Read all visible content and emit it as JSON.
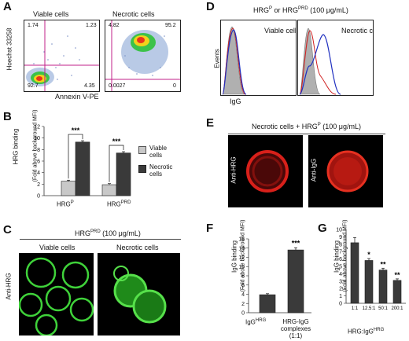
{
  "panels": {
    "A": {
      "letter": "A",
      "left_title": "Viable cells",
      "right_title": "Necrotic cells",
      "ylabel": "Hoechst 33258",
      "xlabel": "Annexin V-PE",
      "viable_quadrants": {
        "ul": "1.74",
        "ur": "1.23",
        "ll": "92.7",
        "lr": "4.35"
      },
      "necrotic_quadrants": {
        "ul": "4.82",
        "ur": "95.2",
        "ll": "0.0027",
        "lr": "0"
      }
    },
    "B": {
      "letter": "B",
      "ylabel": "HRG binding",
      "ylabel2": "(Fold above background MFI)",
      "legend_viable": "Viable cells",
      "legend_necrotic": "Necrotic cells",
      "sig": "***",
      "cat1": "HRG",
      "cat1_sup": "P",
      "cat2": "HRG",
      "cat2_sup": "PRD",
      "colors": {
        "viable": "#c8c8c8",
        "necrotic": "#3a3a3a"
      }
    },
    "C": {
      "letter": "C",
      "title": "HRG",
      "title_sup": "PRD",
      "title_rest": " (100 μg/mL)",
      "left_title": "Viable cells",
      "right_title": "Necrotic cells",
      "ylabel": "Anti-HRG"
    },
    "D": {
      "letter": "D",
      "title_a": "HRG",
      "title_sup_a": "P",
      "title_mid": " or HRG",
      "title_sup_b": "PRD",
      "title_rest": " (100 μg/mL)",
      "left_label": "Viable cells",
      "right_label": "Necrotic cells",
      "ylabel": "Events",
      "xlabel": "IgG"
    },
    "E": {
      "letter": "E",
      "title": "Necrotic cells + HRG",
      "title_sup": "P",
      "title_rest": " (100 μg/mL)",
      "label_left": "Anti-HRG",
      "label_right": "Anti-IgG"
    },
    "F": {
      "letter": "F",
      "ylabel": "IgG binding",
      "ylabel2": "(Fold above background MFI)",
      "cat1": "IgG",
      "cat1_sup": "HRG",
      "cat2_line1": "HRG-IgG",
      "cat2_line2": "complexes",
      "cat2_line3": "(1:1)",
      "sig": "***"
    },
    "G": {
      "letter": "G",
      "ylabel": "IgG binding",
      "ylabel2": "(Fold above background MFI)",
      "xlabel": "HRG:IgG",
      "xlabel_sup": "HRG",
      "sig1": "*",
      "sig2": "**",
      "sig3": "**"
    }
  },
  "chart_data": [
    {
      "type": "bar",
      "panel": "B",
      "categories": [
        "HRGP",
        "HRGPRD"
      ],
      "series": [
        {
          "name": "Viable cells",
          "values": [
            2.5,
            1.9
          ],
          "errors": [
            0.05,
            0.05
          ]
        },
        {
          "name": "Necrotic cells",
          "values": [
            9.3,
            7.4
          ],
          "errors": [
            0.1,
            0.1
          ]
        }
      ],
      "ylim": [
        0,
        12
      ],
      "yticks": [
        0,
        2,
        4,
        6,
        8,
        10,
        12
      ]
    },
    {
      "type": "bar",
      "panel": "F",
      "categories": [
        "IgGHRG",
        "HRG-IgG complexes (1:1)"
      ],
      "values": [
        3.9,
        13.6
      ],
      "errors": [
        0.05,
        0.3
      ],
      "ylim": [
        0,
        16
      ],
      "yticks": [
        0,
        2,
        4,
        6,
        8,
        10,
        12,
        14,
        16
      ]
    },
    {
      "type": "bar",
      "panel": "G",
      "categories": [
        "1:1",
        "12.5:1",
        "50:1",
        "200:1"
      ],
      "values": [
        8.2,
        5.8,
        4.5,
        3.1
      ],
      "errors": [
        0.6,
        0.15,
        0.15,
        0.1
      ],
      "ylim": [
        0,
        10
      ],
      "yticks": [
        0,
        1,
        2,
        3,
        4,
        5,
        6,
        7,
        8,
        9,
        10
      ]
    }
  ]
}
